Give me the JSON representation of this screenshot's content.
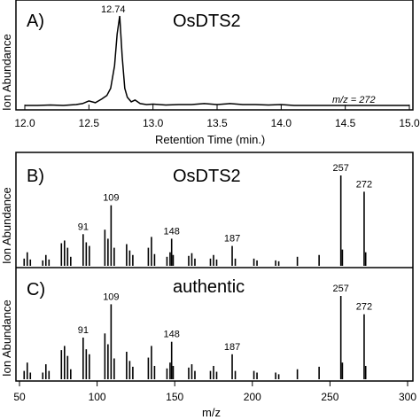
{
  "chart_data": [
    {
      "type": "line",
      "panel_label": "A)",
      "title": "OsDTS2",
      "xlabel": "Retention Time (min.)",
      "ylabel": "Ion Abundance",
      "xlim": [
        12.0,
        15.0
      ],
      "xticks": [
        "12.0",
        "12.5",
        "13.0",
        "13.5",
        "14.0",
        "14.5",
        "15.0"
      ],
      "annotation": "m/z = 272",
      "peak_label": "12.74",
      "peak": {
        "x": 12.74,
        "y": 1.0
      },
      "series": [
        {
          "x": [
            12.0,
            12.1,
            12.2,
            12.3,
            12.4,
            12.45,
            12.5,
            12.55,
            12.6,
            12.64,
            12.67,
            12.7,
            12.72,
            12.74,
            12.76,
            12.78,
            12.8,
            12.83,
            12.86,
            12.9,
            12.95,
            13.0,
            13.1,
            13.2,
            13.3,
            13.4,
            13.5,
            13.6,
            13.7,
            13.8,
            13.9,
            14.0,
            14.1,
            14.2,
            14.3,
            14.4,
            14.5,
            14.6,
            14.7,
            14.8,
            14.9,
            15.0
          ],
          "y": [
            0.01,
            0.01,
            0.015,
            0.01,
            0.02,
            0.03,
            0.06,
            0.04,
            0.08,
            0.12,
            0.2,
            0.45,
            0.8,
            1.0,
            0.55,
            0.2,
            0.1,
            0.05,
            0.07,
            0.03,
            0.02,
            0.025,
            0.015,
            0.02,
            0.02,
            0.03,
            0.02,
            0.03,
            0.02,
            0.02,
            0.015,
            0.02,
            0.01,
            0.01,
            0.01,
            0.01,
            0.01,
            0.01,
            0.01,
            0.01,
            0.01,
            0.01
          ]
        }
      ]
    },
    {
      "type": "bar",
      "panel_label": "B)",
      "title": "OsDTS2",
      "ylabel": "Ion Abundance",
      "xlim": [
        50,
        300
      ],
      "peak_labels": [
        "91",
        "109",
        "148",
        "187",
        "257",
        "272"
      ],
      "x": [
        53,
        55,
        57,
        65,
        67,
        69,
        77,
        79,
        81,
        83,
        91,
        93,
        95,
        105,
        107,
        109,
        111,
        119,
        121,
        123,
        133,
        135,
        137,
        145,
        147,
        148,
        149,
        159,
        161,
        163,
        173,
        175,
        177,
        187,
        189,
        201,
        203,
        215,
        217,
        229,
        243,
        257,
        258,
        272,
        273
      ],
      "y": [
        0.08,
        0.15,
        0.07,
        0.06,
        0.12,
        0.07,
        0.25,
        0.28,
        0.2,
        0.1,
        0.35,
        0.26,
        0.22,
        0.4,
        0.3,
        0.67,
        0.2,
        0.24,
        0.17,
        0.12,
        0.2,
        0.32,
        0.13,
        0.1,
        0.15,
        0.3,
        0.12,
        0.11,
        0.14,
        0.08,
        0.08,
        0.12,
        0.07,
        0.22,
        0.08,
        0.08,
        0.06,
        0.06,
        0.05,
        0.1,
        0.12,
        1.0,
        0.18,
        0.82,
        0.15
      ]
    },
    {
      "type": "bar",
      "panel_label": "C)",
      "title": "authentic",
      "xlabel": "m/z",
      "ylabel": "Ion Abundance",
      "xlim": [
        50,
        300
      ],
      "xticks": [
        "50",
        "100",
        "150",
        "200",
        "250",
        "300"
      ],
      "peak_labels": [
        "91",
        "109",
        "148",
        "187",
        "257",
        "272"
      ],
      "x": [
        53,
        55,
        57,
        65,
        67,
        69,
        77,
        79,
        81,
        83,
        91,
        93,
        95,
        105,
        107,
        109,
        111,
        119,
        121,
        123,
        133,
        135,
        137,
        145,
        147,
        148,
        149,
        159,
        161,
        163,
        173,
        175,
        177,
        187,
        189,
        201,
        203,
        215,
        217,
        229,
        243,
        257,
        258,
        272,
        273
      ],
      "y": [
        0.1,
        0.2,
        0.08,
        0.08,
        0.18,
        0.1,
        0.35,
        0.4,
        0.28,
        0.12,
        0.5,
        0.36,
        0.3,
        0.55,
        0.42,
        0.9,
        0.25,
        0.33,
        0.22,
        0.15,
        0.26,
        0.4,
        0.16,
        0.13,
        0.2,
        0.45,
        0.16,
        0.14,
        0.18,
        0.1,
        0.1,
        0.16,
        0.09,
        0.3,
        0.1,
        0.1,
        0.08,
        0.08,
        0.06,
        0.12,
        0.15,
        1.0,
        0.2,
        0.78,
        0.16
      ]
    }
  ]
}
